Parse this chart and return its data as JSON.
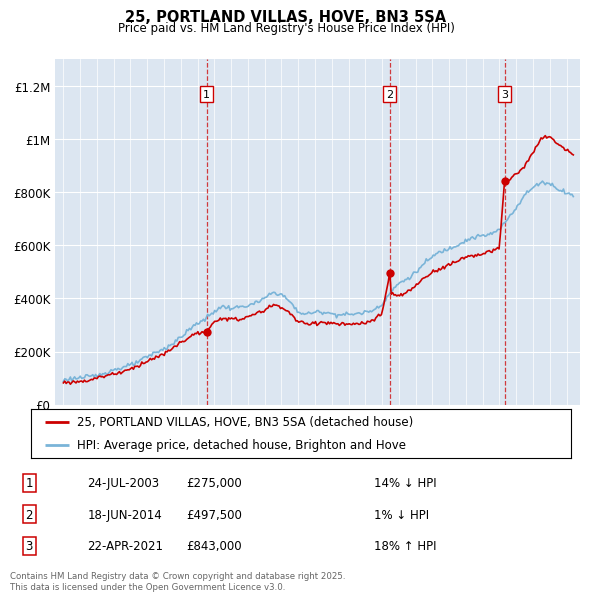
{
  "title": "25, PORTLAND VILLAS, HOVE, BN3 5SA",
  "subtitle": "Price paid vs. HM Land Registry's House Price Index (HPI)",
  "ylim": [
    0,
    1300000
  ],
  "yticks": [
    0,
    200000,
    400000,
    600000,
    800000,
    1000000,
    1200000
  ],
  "ytick_labels": [
    "£0",
    "£200K",
    "£400K",
    "£600K",
    "£800K",
    "£1M",
    "£1.2M"
  ],
  "background_color": "#dce6f1",
  "legend_line1": "25, PORTLAND VILLAS, HOVE, BN3 5SA (detached house)",
  "legend_line2": "HPI: Average price, detached house, Brighton and Hove",
  "sale1_date": "24-JUL-2003",
  "sale1_price": "£275,000",
  "sale1_hpi": "14% ↓ HPI",
  "sale1_x": 2003.55,
  "sale1_y": 275000,
  "sale2_date": "18-JUN-2014",
  "sale2_price": "£497,500",
  "sale2_hpi": "1% ↓ HPI",
  "sale2_x": 2014.46,
  "sale2_y": 497500,
  "sale3_date": "22-APR-2021",
  "sale3_price": "£843,000",
  "sale3_hpi": "18% ↑ HPI",
  "sale3_x": 2021.31,
  "sale3_y": 843000,
  "red_color": "#cc0000",
  "blue_color": "#7ab4d8",
  "footer": "Contains HM Land Registry data © Crown copyright and database right 2025.\nThis data is licensed under the Open Government Licence v3.0.",
  "xmin": 1994.5,
  "xmax": 2025.8
}
